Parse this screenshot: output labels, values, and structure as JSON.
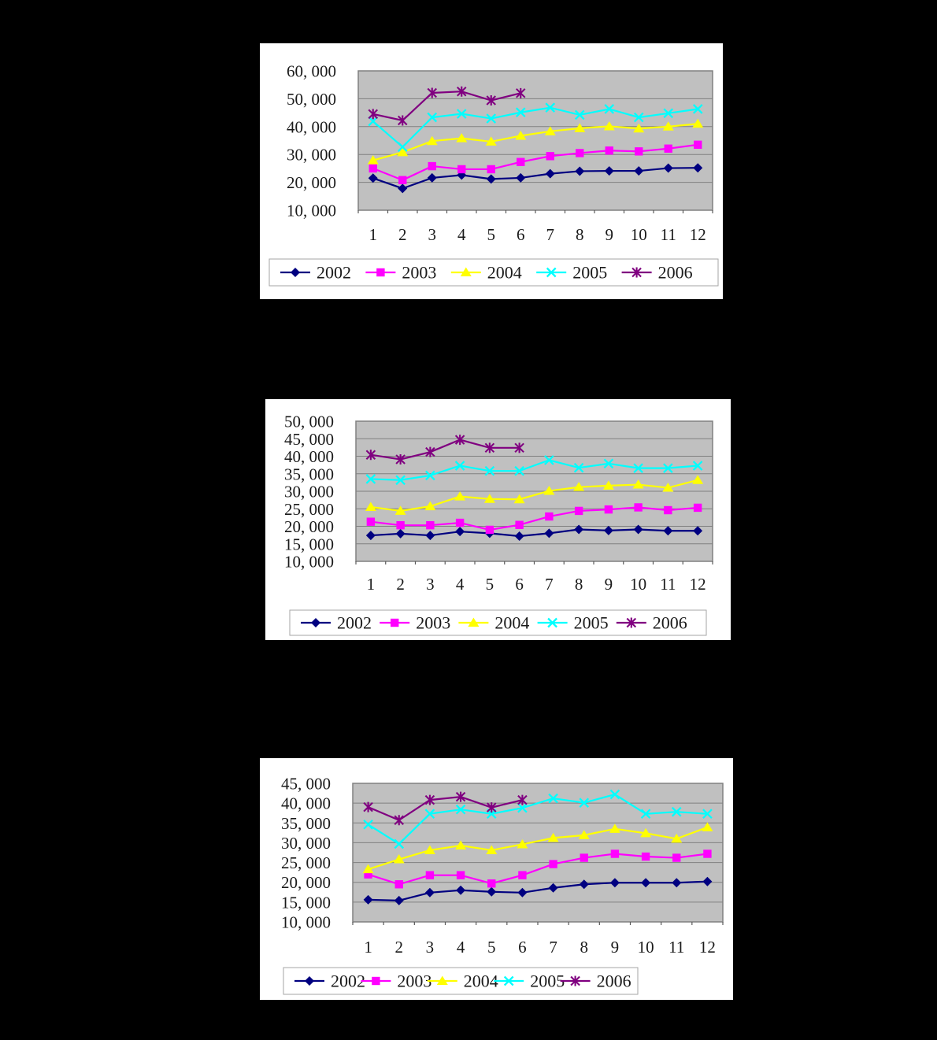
{
  "page": {
    "background_color": "#000000",
    "chart_panel_color": "#ffffff"
  },
  "chart_data": [
    {
      "id": "top-chart",
      "type": "line",
      "categories": [
        "1",
        "2",
        "3",
        "4",
        "5",
        "6",
        "7",
        "8",
        "9",
        "10",
        "11",
        "12"
      ],
      "ylim": [
        10000,
        60000
      ],
      "ytick_step": 10000,
      "ytick_labels": [
        "60, 000",
        "50, 000",
        "40, 000",
        "30, 000",
        "20, 000",
        "10, 000"
      ],
      "grid": true,
      "legend_position": "bottom",
      "plot_bg": "#c0c0c0",
      "grid_color": "#808080",
      "legend_border": "#a6a6a6",
      "series": [
        {
          "name": "2002",
          "color": "#000080",
          "marker": "diamond",
          "values": [
            21500,
            17800,
            21600,
            22600,
            21200,
            21600,
            23100,
            24000,
            24100,
            24100,
            25100,
            25200
          ]
        },
        {
          "name": "2003",
          "color": "#ff00ff",
          "marker": "square",
          "values": [
            25000,
            20800,
            25800,
            24700,
            24700,
            27300,
            29400,
            30500,
            31400,
            31100,
            32100,
            33500
          ]
        },
        {
          "name": "2004",
          "color": "#ffff00",
          "marker": "triangle",
          "values": [
            27900,
            30800,
            34800,
            35800,
            34600,
            36700,
            38300,
            39400,
            40100,
            39300,
            40000,
            41000
          ]
        },
        {
          "name": "2005",
          "color": "#00ffff",
          "marker": "x",
          "values": [
            41900,
            32700,
            43300,
            44600,
            42900,
            45100,
            46800,
            44200,
            46300,
            43300,
            44800,
            46300
          ]
        },
        {
          "name": "2006",
          "color": "#800080",
          "marker": "star",
          "values": [
            44500,
            42200,
            52100,
            52600,
            49400,
            52000
          ]
        }
      ]
    },
    {
      "id": "middle-chart",
      "type": "line",
      "categories": [
        "1",
        "2",
        "3",
        "4",
        "5",
        "6",
        "7",
        "8",
        "9",
        "10",
        "11",
        "12"
      ],
      "ylim": [
        10000,
        50000
      ],
      "ytick_step": 5000,
      "ytick_labels": [
        "50, 000",
        "45, 000",
        "40, 000",
        "35, 000",
        "30, 000",
        "25, 000",
        "20, 000",
        "15, 000",
        "10, 000"
      ],
      "grid": true,
      "legend_position": "bottom",
      "plot_bg": "#c0c0c0",
      "grid_color": "#808080",
      "legend_border": "#a6a6a6",
      "series": [
        {
          "name": "2002",
          "color": "#000080",
          "marker": "diamond",
          "values": [
            17400,
            17900,
            17400,
            18500,
            18000,
            17200,
            18000,
            19100,
            18800,
            19100,
            18700,
            18700
          ]
        },
        {
          "name": "2003",
          "color": "#ff00ff",
          "marker": "square",
          "values": [
            21300,
            20300,
            20300,
            21000,
            19000,
            20400,
            22800,
            24400,
            24800,
            25400,
            24600,
            25300
          ]
        },
        {
          "name": "2004",
          "color": "#ffff00",
          "marker": "triangle",
          "values": [
            25500,
            24400,
            25700,
            28500,
            27800,
            27700,
            30100,
            31200,
            31600,
            31900,
            31000,
            33200
          ]
        },
        {
          "name": "2005",
          "color": "#00ffff",
          "marker": "x",
          "values": [
            33500,
            33200,
            34500,
            37300,
            35800,
            35800,
            38900,
            36700,
            37900,
            36600,
            36600,
            37300
          ]
        },
        {
          "name": "2006",
          "color": "#800080",
          "marker": "star",
          "values": [
            40400,
            39100,
            41200,
            44700,
            42400,
            42400
          ]
        }
      ]
    },
    {
      "id": "bottom-chart",
      "type": "line",
      "categories": [
        "1",
        "2",
        "3",
        "4",
        "5",
        "6",
        "7",
        "8",
        "9",
        "10",
        "11",
        "12"
      ],
      "ylim": [
        10000,
        45000
      ],
      "ytick_step": 5000,
      "ytick_labels": [
        "45, 000",
        "40, 000",
        "35, 000",
        "30, 000",
        "25, 000",
        "20, 000",
        "15, 000",
        "10, 000"
      ],
      "grid": true,
      "legend_position": "bottom",
      "plot_bg": "#c0c0c0",
      "grid_color": "#808080",
      "legend_border": "#a6a6a6",
      "series": [
        {
          "name": "2002",
          "color": "#000080",
          "marker": "diamond",
          "values": [
            15600,
            15400,
            17400,
            18000,
            17600,
            17400,
            18600,
            19500,
            19900,
            19900,
            19900,
            20200
          ]
        },
        {
          "name": "2003",
          "color": "#ff00ff",
          "marker": "square",
          "values": [
            22000,
            19500,
            21800,
            21800,
            19700,
            21800,
            24600,
            26200,
            27200,
            26500,
            26200,
            27200
          ]
        },
        {
          "name": "2004",
          "color": "#ffff00",
          "marker": "triangle",
          "values": [
            23300,
            25800,
            28100,
            29300,
            28100,
            29600,
            31200,
            31900,
            33500,
            32400,
            31000,
            33900
          ]
        },
        {
          "name": "2005",
          "color": "#00ffff",
          "marker": "x",
          "values": [
            34600,
            29700,
            37300,
            38400,
            37300,
            38800,
            41200,
            40100,
            42200,
            37300,
            37800,
            37300
          ]
        },
        {
          "name": "2006",
          "color": "#800080",
          "marker": "star",
          "values": [
            39000,
            35700,
            40800,
            41600,
            38900,
            40800
          ]
        }
      ]
    }
  ]
}
